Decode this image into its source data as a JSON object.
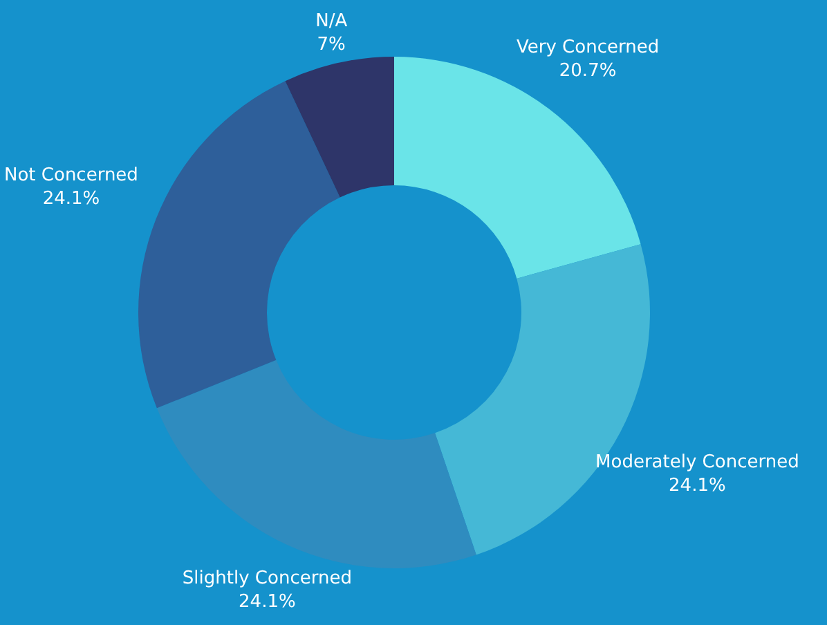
{
  "chart_data": {
    "type": "donut",
    "categories": [
      "Very Concerned",
      "Moderately Concerned",
      "Slightly Concerned",
      "Not Concerned",
      "N/A"
    ],
    "values": [
      20.7,
      24.1,
      24.1,
      24.1,
      7
    ],
    "colors": [
      "#6ae4e8",
      "#45b8d6",
      "#2f8cbf",
      "#2e5f9a",
      "#2e3569"
    ],
    "value_labels": [
      "20.7%",
      "24.1%",
      "24.1%",
      "24.1%",
      "7%"
    ],
    "legend": false
  }
}
